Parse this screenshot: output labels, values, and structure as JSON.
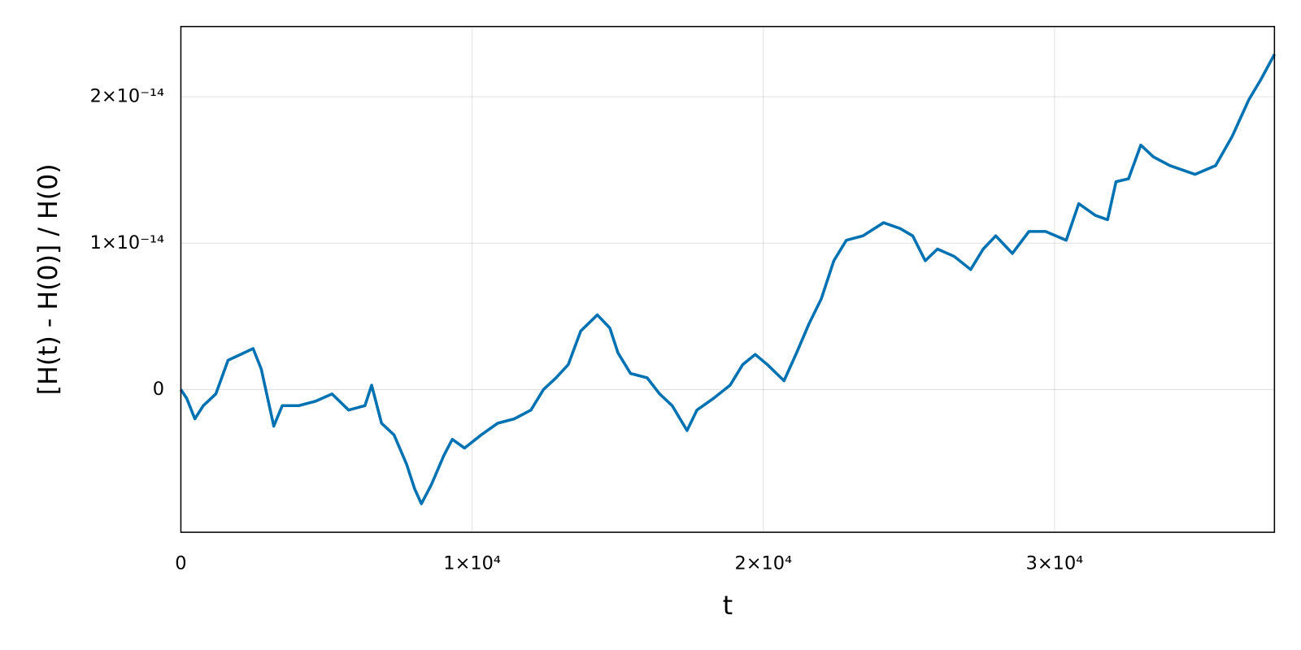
{
  "chart_data": {
    "type": "line",
    "xlabel": "t",
    "ylabel": "[H(t) - H(0)] / H(0)",
    "x": [
      0,
      200,
      480,
      770,
      1200,
      1620,
      2050,
      2480,
      2760,
      3190,
      3480,
      4050,
      4620,
      5190,
      5760,
      6320,
      6550,
      6890,
      7320,
      7750,
      8030,
      8260,
      8600,
      9030,
      9320,
      9740,
      10310,
      10880,
      11450,
      12020,
      12450,
      12880,
      13300,
      13730,
      14300,
      14730,
      15010,
      15440,
      16010,
      16440,
      16870,
      17380,
      17720,
      18290,
      18860,
      19290,
      19720,
      20140,
      20710,
      21140,
      21570,
      21990,
      22420,
      22850,
      23420,
      24130,
      24700,
      25130,
      25560,
      25980,
      26550,
      27120,
      27550,
      27980,
      28550,
      29120,
      29690,
      30400,
      30830,
      31400,
      31820,
      32110,
      32540,
      32960,
      33390,
      33960,
      34820,
      35530,
      36100,
      36670,
      37090,
      37550
    ],
    "series": [
      {
        "color": "#0072b2",
        "values": [
          0,
          -6e-16,
          -2e-15,
          -1.1e-15,
          -3e-16,
          2e-15,
          2.4e-15,
          2.8e-15,
          1.4e-15,
          -2.5e-15,
          -1.1e-15,
          -1.1e-15,
          -8e-16,
          -3e-16,
          -1.4e-15,
          -1.1e-15,
          3e-16,
          -2.3e-15,
          -3.1e-15,
          -5.1e-15,
          -6.8e-15,
          -7.8e-15,
          -6.5e-15,
          -4.5e-15,
          -3.4e-15,
          -4e-15,
          -3.1e-15,
          -2.3e-15,
          -2e-15,
          -1.4e-15,
          0,
          8e-16,
          1.7e-15,
          4e-15,
          5.1e-15,
          4.2e-15,
          2.5e-15,
          1.1e-15,
          8e-16,
          -3e-16,
          -1.1e-15,
          -2.8e-15,
          -1.4e-15,
          -6e-16,
          3e-16,
          1.7e-15,
          2.4e-15,
          1.7e-15,
          6e-16,
          2.5e-15,
          4.5e-15,
          6.2e-15,
          8.8e-15,
          1.02e-14,
          1.05e-14,
          1.14e-14,
          1.1e-14,
          1.05e-14,
          8.8e-15,
          9.6e-15,
          9.1e-15,
          8.2e-15,
          9.6e-15,
          1.05e-14,
          9.3e-15,
          1.08e-14,
          1.08e-14,
          1.02e-14,
          1.27e-14,
          1.19e-14,
          1.16e-14,
          1.42e-14,
          1.44e-14,
          1.67e-14,
          1.59e-14,
          1.53e-14,
          1.47e-14,
          1.53e-14,
          1.73e-14,
          1.98e-14,
          2.12e-14,
          2.29e-14
        ]
      }
    ],
    "xlim": [
      0,
      37550
    ],
    "ylim": [
      -9.75e-15,
      2.48e-14
    ],
    "xticks": [
      0,
      {
        "value": 10000,
        "label": "1×10⁴"
      },
      {
        "value": 20000,
        "label": "2×10⁴"
      },
      {
        "value": 30000,
        "label": "3×10⁴"
      }
    ],
    "yticks": [
      0,
      {
        "value": 1e-14,
        "label": "1×10⁻¹⁴"
      },
      {
        "value": 2e-14,
        "label": "2×10⁻¹⁴"
      }
    ],
    "grid": true
  }
}
